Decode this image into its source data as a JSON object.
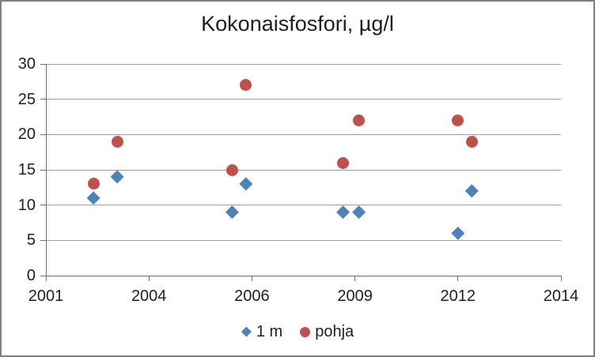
{
  "chart_data": {
    "type": "scatter",
    "title": "Kokonaisfosfori, µg/l",
    "xlabel": "",
    "ylabel": "",
    "xlim": [
      2001,
      2014
    ],
    "ylim": [
      0,
      30
    ],
    "x_tick_labels": [
      "2001",
      "2004",
      "2006",
      "2009",
      "2012",
      "2014"
    ],
    "y_ticks": [
      0,
      5,
      10,
      15,
      20,
      25,
      30
    ],
    "grid": "horizontal-only",
    "legend_position": "bottom-center",
    "colors": {
      "background": "#ffffff",
      "frame_border": "#7f7f7f",
      "axis": "#6f6f6f",
      "gridline": "#9d9d9d",
      "text": "#1f1f1f",
      "series_1m": "#4f81bd",
      "series_pohja": "#c0504d"
    },
    "series": [
      {
        "name": "1 m",
        "marker": "diamond",
        "color": "#4f81bd",
        "points": [
          {
            "x": 2002.2,
            "y": 11
          },
          {
            "x": 2002.8,
            "y": 14
          },
          {
            "x": 2005.7,
            "y": 9
          },
          {
            "x": 2006.05,
            "y": 13
          },
          {
            "x": 2008.5,
            "y": 9
          },
          {
            "x": 2008.9,
            "y": 9
          },
          {
            "x": 2011.4,
            "y": 6
          },
          {
            "x": 2011.75,
            "y": 12
          }
        ]
      },
      {
        "name": "pohja",
        "marker": "circle",
        "color": "#c0504d",
        "points": [
          {
            "x": 2002.2,
            "y": 13
          },
          {
            "x": 2002.8,
            "y": 19
          },
          {
            "x": 2005.7,
            "y": 15
          },
          {
            "x": 2006.05,
            "y": 27
          },
          {
            "x": 2008.5,
            "y": 16
          },
          {
            "x": 2008.9,
            "y": 22
          },
          {
            "x": 2011.4,
            "y": 22
          },
          {
            "x": 2011.75,
            "y": 19
          }
        ]
      }
    ]
  }
}
